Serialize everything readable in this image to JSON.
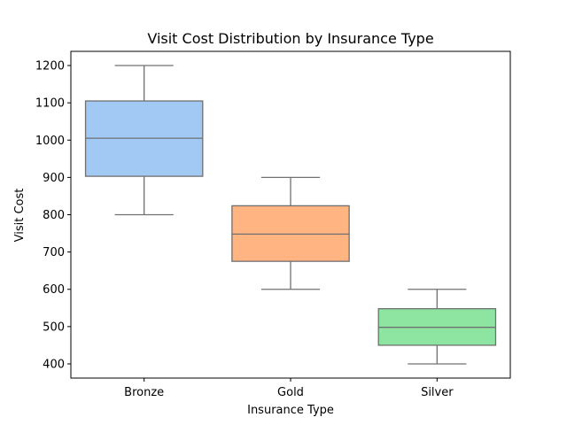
{
  "chart_data": {
    "type": "boxplot",
    "title": "Visit Cost Distribution by Insurance Type",
    "xlabel": "Insurance Type",
    "ylabel": "Visit Cost",
    "categories": [
      "Bronze",
      "Gold",
      "Silver"
    ],
    "series": [
      {
        "category": "Bronze",
        "min": 800,
        "q1": 903,
        "median": 1005,
        "q3": 1105,
        "max": 1200,
        "color": "#a1c9f4"
      },
      {
        "category": "Gold",
        "min": 600,
        "q1": 675,
        "median": 748,
        "q3": 824,
        "max": 900,
        "color": "#ffb482"
      },
      {
        "category": "Silver",
        "min": 400,
        "q1": 450,
        "median": 498,
        "q3": 548,
        "max": 600,
        "color": "#8de5a1"
      }
    ],
    "yticks": [
      400,
      500,
      600,
      700,
      800,
      900,
      1000,
      1100,
      1200
    ],
    "ylim": [
      362,
      1238
    ],
    "grid": false,
    "legend": "none",
    "line_color": "#707070"
  }
}
